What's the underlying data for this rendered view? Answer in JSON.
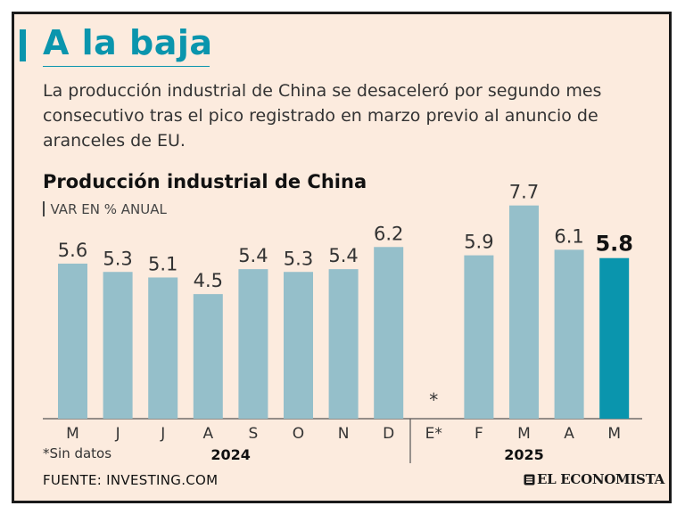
{
  "header": {
    "title": "A la baja",
    "description": "La producción industrial de China se desaceleró por segundo mes consecutivo tras el pico registrado en marzo previo al anuncio de aranceles de EU."
  },
  "colors": {
    "accent": "#0a95ad",
    "bar": "#95bfca",
    "highlight": "#0a95ad",
    "background": "#fcebde",
    "text": "#333333"
  },
  "chart_data": {
    "type": "bar",
    "title": "Producción industrial de China",
    "subtitle": "VAR EN % ANUAL",
    "categories": [
      "M",
      "J",
      "J",
      "A",
      "S",
      "O",
      "N",
      "D",
      "E*",
      "F",
      "M",
      "A",
      "M"
    ],
    "values": [
      5.6,
      5.3,
      5.1,
      4.5,
      5.4,
      5.3,
      5.4,
      6.2,
      null,
      5.9,
      7.7,
      6.1,
      5.8
    ],
    "value_labels": [
      "5.6",
      "5.3",
      "5.1",
      "4.5",
      "5.4",
      "5.3",
      "5.4",
      "6.2",
      "*",
      "5.9",
      "7.7",
      "6.1",
      "5.8"
    ],
    "highlight_index": 12,
    "groups": [
      {
        "label": "2024",
        "start": 0,
        "end": 7
      },
      {
        "label": "2025",
        "start": 8,
        "end": 12
      }
    ],
    "ylim": [
      0,
      8.3
    ],
    "grid": false
  },
  "footer": {
    "note": "*Sin datos",
    "source": "FUENTE: INVESTING.COM",
    "brand": "EL ECONOMISTA",
    "brand_icon": "newspaper-logo-icon"
  }
}
